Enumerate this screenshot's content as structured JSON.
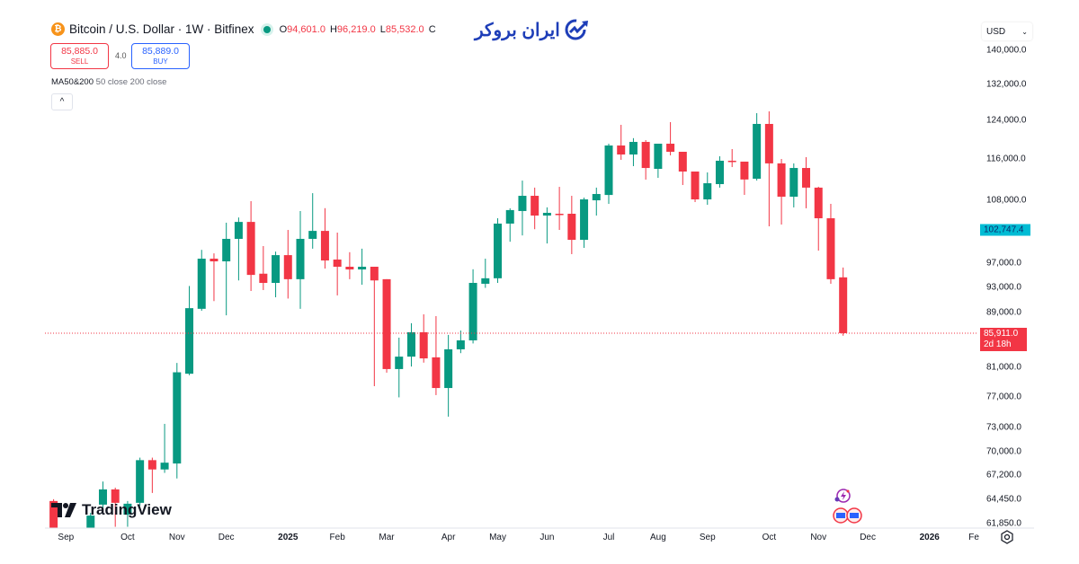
{
  "header": {
    "symbol": "Bitcoin / U.S. Dollar · 1W · Bitfinex",
    "btc_glyph": "₿",
    "ohlc": [
      {
        "k": "O",
        "v": "94,601.0"
      },
      {
        "k": "H",
        "v": "96,219.0"
      },
      {
        "k": "L",
        "v": "85,532.0"
      },
      {
        "k": "C",
        "v": ""
      }
    ]
  },
  "trade": {
    "sell_price": "85,885.0",
    "sell_label": "SELL",
    "spread": "4.0",
    "buy_price": "85,889.0",
    "buy_label": "BUY"
  },
  "indicator": {
    "name": "MA50&200",
    "params": "50 close 200 close"
  },
  "collapse_glyph": "^",
  "logo_text": "ایران بروکر",
  "currency": "USD",
  "watermark": "TradingView",
  "colors": {
    "up": "#089981",
    "down": "#f23645",
    "level": "#00bcd4"
  },
  "chart_data": {
    "type": "candlestick",
    "scale": "log",
    "ylim": [
      60000,
      145000
    ],
    "yticks": [
      140000,
      132000,
      124000,
      116000,
      108000,
      97000,
      93000,
      89000,
      81000,
      77000,
      73000,
      70000,
      67200,
      64450,
      61850
    ],
    "ytick_labels": [
      "140,000.0",
      "132,000.0",
      "124,000.0",
      "116,000.0",
      "108,000.0",
      "97,000.0",
      "93,000.0",
      "89,000.0",
      "81,000.0",
      "77,000.0",
      "73,000.0",
      "70,000.0",
      "67,200.0",
      "64,450.0",
      "61,850.0"
    ],
    "level": {
      "value": 102747.4,
      "label": "102,747.4"
    },
    "last": {
      "value": 85911,
      "label": "85,911.0",
      "countdown": "2d 18h"
    },
    "xticks": [
      {
        "i": 1,
        "label": "Sep"
      },
      {
        "i": 6,
        "label": "Oct"
      },
      {
        "i": 10,
        "label": "Nov"
      },
      {
        "i": 14,
        "label": "Dec"
      },
      {
        "i": 19,
        "label": "2025"
      },
      {
        "i": 23,
        "label": "Feb"
      },
      {
        "i": 27,
        "label": "Mar"
      },
      {
        "i": 32,
        "label": "Apr"
      },
      {
        "i": 36,
        "label": "May"
      },
      {
        "i": 40,
        "label": "Jun"
      },
      {
        "i": 45,
        "label": "Jul"
      },
      {
        "i": 49,
        "label": "Aug"
      },
      {
        "i": 53,
        "label": "Sep"
      },
      {
        "i": 58,
        "label": "Oct"
      },
      {
        "i": 62,
        "label": "Nov"
      },
      {
        "i": 66,
        "label": "Dec"
      },
      {
        "i": 71,
        "label": "2026"
      },
      {
        "i": 74.6,
        "label": "Fe"
      }
    ],
    "candles": [
      [
        64300,
        64500,
        61000,
        61200
      ],
      [
        58500,
        60500,
        57000,
        59000
      ],
      [
        59000,
        59800,
        57500,
        58200
      ],
      [
        60500,
        63000,
        59800,
        62700
      ],
      [
        63900,
        66500,
        63500,
        65600
      ],
      [
        65600,
        65800,
        61500,
        64100
      ],
      [
        62800,
        64300,
        61500,
        64000
      ],
      [
        64100,
        69300,
        63800,
        69000
      ],
      [
        69000,
        69300,
        65200,
        67900
      ],
      [
        67900,
        73460,
        67500,
        68700
      ],
      [
        68600,
        81600,
        66850,
        80300
      ],
      [
        80100,
        93200,
        79900,
        89700
      ],
      [
        89600,
        99200,
        89300,
        97700
      ],
      [
        97700,
        98600,
        90800,
        97250
      ],
      [
        97250,
        103960,
        88600,
        101100
      ],
      [
        101100,
        104900,
        94100,
        104100
      ],
      [
        104100,
        107900,
        92400,
        95000
      ],
      [
        95200,
        99850,
        92550,
        93700
      ],
      [
        93700,
        98900,
        91400,
        98300
      ],
      [
        98300,
        102670,
        91200,
        94300
      ],
      [
        94300,
        106080,
        89600,
        101100
      ],
      [
        101100,
        109400,
        99400,
        102500
      ],
      [
        102500,
        106600,
        96050,
        97400
      ],
      [
        97550,
        102200,
        91700,
        96350
      ],
      [
        96350,
        98800,
        94300,
        95900
      ],
      [
        95900,
        99400,
        93400,
        96350
      ],
      [
        96350,
        96350,
        78400,
        94100
      ],
      [
        94300,
        94300,
        80250,
        80750
      ],
      [
        80750,
        85250,
        76900,
        82500
      ],
      [
        82500,
        87400,
        81100,
        86050
      ],
      [
        86050,
        88750,
        81650,
        82250
      ],
      [
        82400,
        88480,
        77200,
        78150
      ],
      [
        78150,
        85650,
        74380,
        83550
      ],
      [
        83550,
        86300,
        83000,
        84850
      ],
      [
        84850,
        95930,
        84400,
        93700
      ],
      [
        93560,
        97700,
        92900,
        94450
      ],
      [
        94450,
        104760,
        93700,
        103800
      ],
      [
        103800,
        106580,
        100600,
        106250
      ],
      [
        106080,
        111800,
        101700,
        108900
      ],
      [
        108900,
        110450,
        102800,
        105250
      ],
      [
        105250,
        106750,
        100300,
        105750
      ],
      [
        105580,
        110600,
        102670,
        105420
      ],
      [
        105580,
        108900,
        98470,
        100930
      ],
      [
        100930,
        108560,
        99540,
        108230
      ],
      [
        108060,
        110450,
        105250,
        109240
      ],
      [
        109060,
        119150,
        107400,
        118780
      ],
      [
        118780,
        123100,
        115880,
        116950
      ],
      [
        116950,
        120300,
        114620,
        119520
      ],
      [
        119520,
        119900,
        111990,
        114260
      ],
      [
        114090,
        119150,
        112330,
        119150
      ],
      [
        119150,
        123670,
        116770,
        117500
      ],
      [
        117500,
        117500,
        110950,
        113560
      ],
      [
        113560,
        113560,
        107730,
        108230
      ],
      [
        108230,
        113390,
        107230,
        111290
      ],
      [
        111120,
        116590,
        110450,
        115700
      ],
      [
        115700,
        118050,
        114440,
        115520
      ],
      [
        115520,
        115520,
        109070,
        112010
      ],
      [
        112160,
        125600,
        111810,
        123290
      ],
      [
        123290,
        125990,
        103310,
        115170
      ],
      [
        115170,
        116050,
        103630,
        108730
      ],
      [
        108730,
        115170,
        106740,
        114260
      ],
      [
        114260,
        116410,
        106580,
        110450
      ],
      [
        110450,
        110620,
        99070,
        104760
      ],
      [
        104760,
        107400,
        93560,
        94300
      ],
      [
        94601,
        96219,
        85532,
        85911
      ]
    ]
  }
}
